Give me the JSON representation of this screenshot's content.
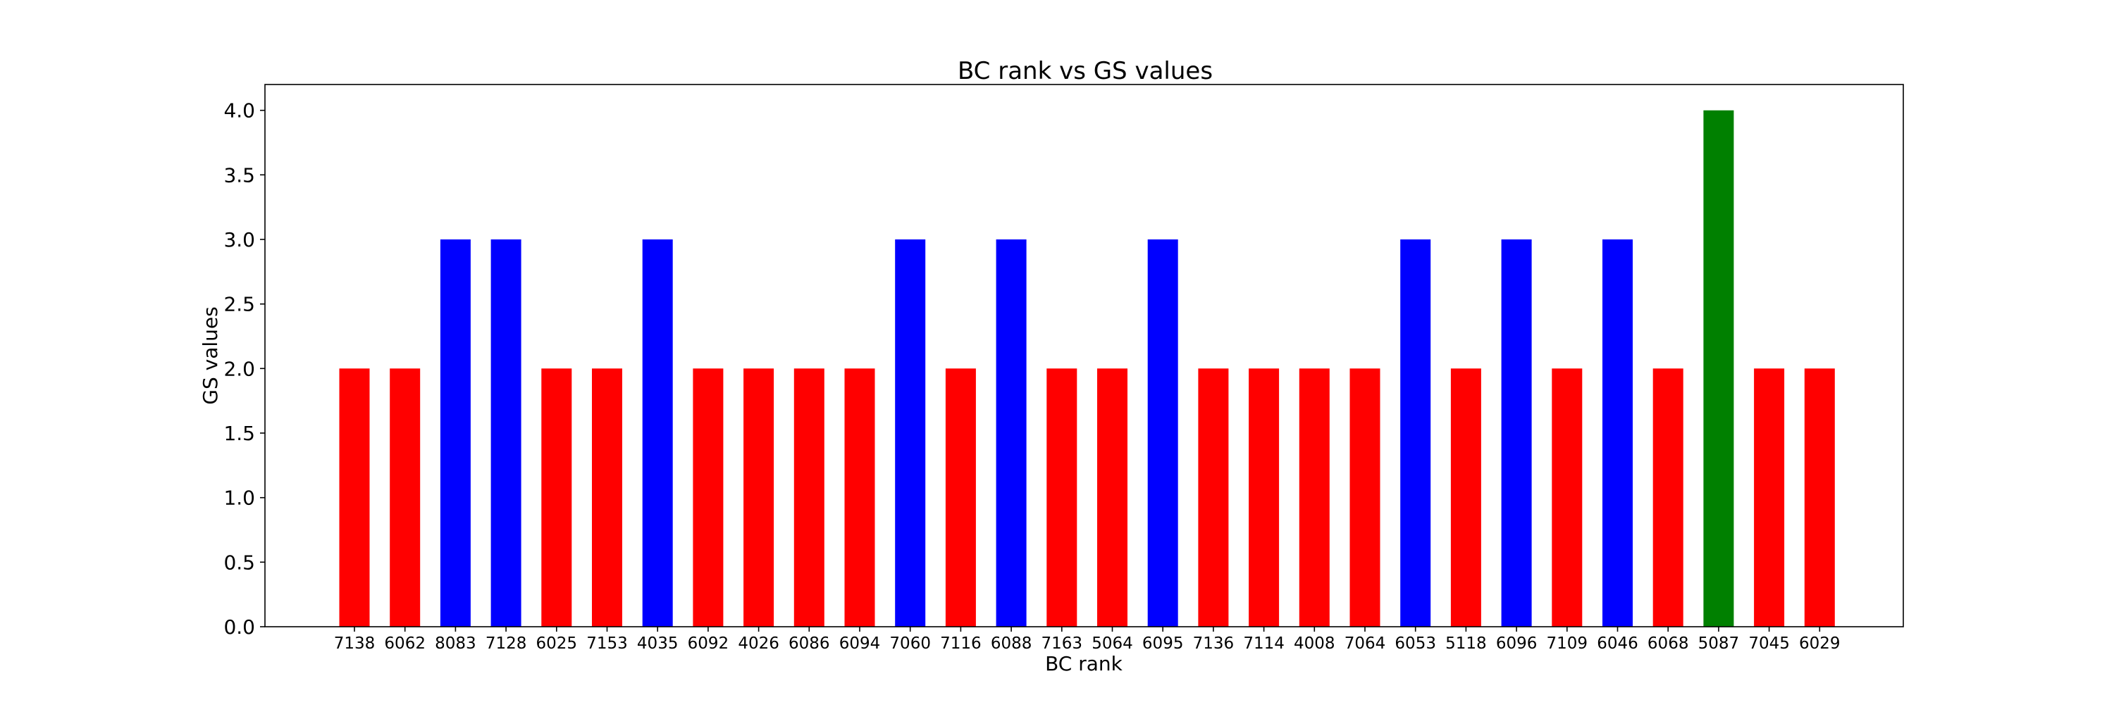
{
  "chart_data": {
    "type": "bar",
    "title": "BC rank vs GS values",
    "xlabel": "BC rank",
    "ylabel": "GS values",
    "ylim": [
      0,
      4.2
    ],
    "yticks": [
      "0.0",
      "0.5",
      "1.0",
      "1.5",
      "2.0",
      "2.5",
      "3.0",
      "3.5",
      "4.0"
    ],
    "grid": false,
    "categories": [
      "7138",
      "6062",
      "8083",
      "7128",
      "6025",
      "7153",
      "4035",
      "6092",
      "4026",
      "6086",
      "6094",
      "7060",
      "7116",
      "6088",
      "7163",
      "5064",
      "6095",
      "7136",
      "7114",
      "4008",
      "7064",
      "6053",
      "5118",
      "6096",
      "7109",
      "6046",
      "6068",
      "5087",
      "7045",
      "6029"
    ],
    "values": [
      2,
      2,
      3,
      3,
      2,
      2,
      3,
      2,
      2,
      2,
      2,
      3,
      2,
      3,
      2,
      2,
      3,
      2,
      2,
      2,
      2,
      3,
      2,
      3,
      2,
      3,
      2,
      4,
      2,
      2
    ],
    "bar_colors": [
      "#ff0000",
      "#ff0000",
      "#0000ff",
      "#0000ff",
      "#ff0000",
      "#ff0000",
      "#0000ff",
      "#ff0000",
      "#ff0000",
      "#ff0000",
      "#ff0000",
      "#0000ff",
      "#ff0000",
      "#0000ff",
      "#ff0000",
      "#ff0000",
      "#0000ff",
      "#ff0000",
      "#ff0000",
      "#ff0000",
      "#ff0000",
      "#0000ff",
      "#ff0000",
      "#0000ff",
      "#ff0000",
      "#0000ff",
      "#ff0000",
      "#008000",
      "#ff0000",
      "#ff0000"
    ]
  }
}
